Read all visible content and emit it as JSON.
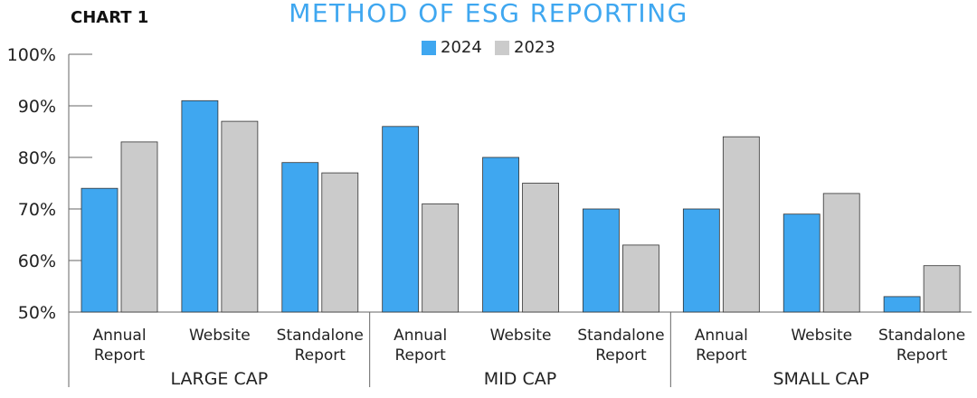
{
  "chart_number": "CHART 1",
  "chart_data": {
    "type": "bar",
    "title": "METHOD OF ESG REPORTING",
    "groups": [
      "LARGE CAP",
      "MID CAP",
      "SMALL CAP"
    ],
    "categories": [
      "Annual Report",
      "Website",
      "Standalone Report"
    ],
    "category_lines": [
      [
        "Annual",
        "Report"
      ],
      [
        "Website"
      ],
      [
        "Standalone",
        "Report"
      ]
    ],
    "series": [
      {
        "name": "2024",
        "color": "#3fa7f0",
        "values": [
          [
            74,
            91,
            79
          ],
          [
            86,
            80,
            70
          ],
          [
            70,
            69,
            53
          ]
        ]
      },
      {
        "name": "2023",
        "color": "#cbcbcb",
        "values": [
          [
            83,
            87,
            77
          ],
          [
            71,
            75,
            63
          ],
          [
            84,
            73,
            59
          ]
        ]
      }
    ],
    "ylim": [
      50,
      100
    ],
    "yticks": [
      "50%",
      "60%",
      "70%",
      "80%",
      "90%",
      "100%"
    ],
    "grid": false,
    "legend": "top-center"
  }
}
